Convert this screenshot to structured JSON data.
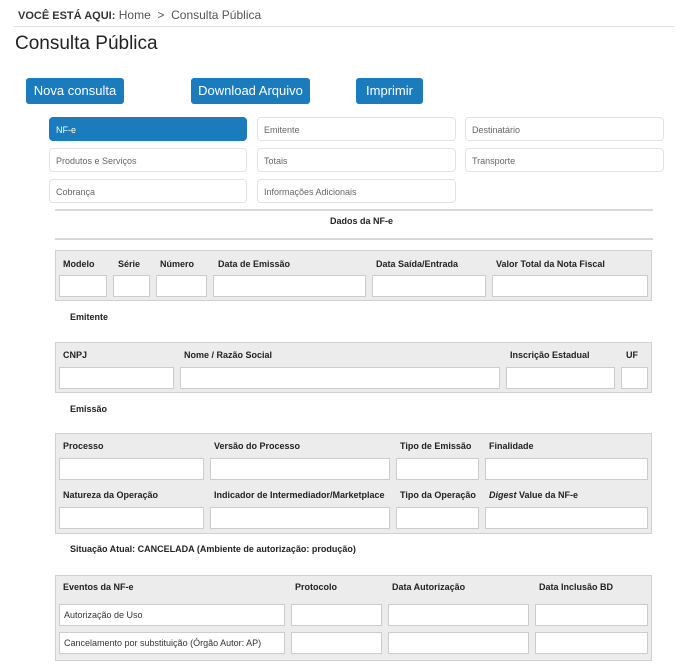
{
  "breadcrumb": {
    "prefix": "VOCÊ ESTÁ AQUI:",
    "home": "Home",
    "sep": ">",
    "current": "Consulta Pública"
  },
  "page_title": "Consulta Pública",
  "buttons": {
    "nova": "Nova consulta",
    "download": "Download Arquivo",
    "imprimir": "Imprimir"
  },
  "tabs": [
    "NF-e",
    "Emitente",
    "Destinatário",
    "Produtos e Serviços",
    "Totais",
    "Transporte",
    "Cobrança",
    "Informações Adicionais"
  ],
  "section_title": "Dados da NF-e",
  "nfe": {
    "labels": [
      "Modelo",
      "Série",
      "Número",
      "Data de Emissão",
      "Data Saída/Entrada",
      "Valor Total da Nota Fiscal"
    ]
  },
  "emitente": {
    "title": "Emitente",
    "labels": [
      "CNPJ",
      "Nome / Razão Social",
      "Inscrição Estadual",
      "UF"
    ]
  },
  "emissao": {
    "title": "Emissão",
    "labels": [
      "Processo",
      "Versão do Processo",
      "Tipo de Emissão",
      "Finalidade",
      "Natureza da Operação",
      "Indicador de Intermediador/Marketplace",
      "Tipo da Operação"
    ],
    "digest_italic": "Digest",
    "digest_rest": " Value da NF-e"
  },
  "situacao": "Situação Atual: CANCELADA (Ambiente de autorização: produção)",
  "eventos": {
    "headers": [
      "Eventos da NF-e",
      "Protocolo",
      "Data Autorização",
      "Data Inclusão BD"
    ],
    "rows": [
      "Autorização de Uso",
      "Cancelamento por substituição (Órgão Autor: AP)"
    ]
  },
  "colors": {
    "primary": "#1a7bbd"
  }
}
